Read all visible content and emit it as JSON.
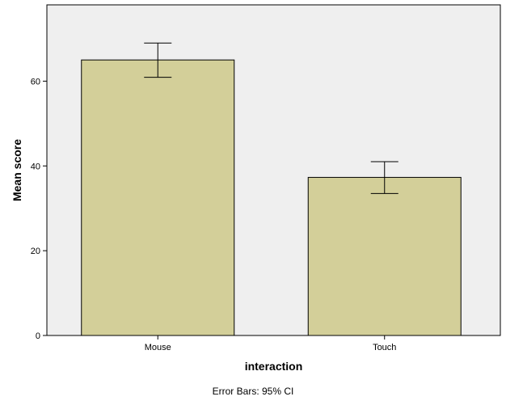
{
  "chart_data": {
    "type": "bar",
    "categories": [
      "Mouse",
      "Touch"
    ],
    "values": [
      65,
      37.3
    ],
    "error_bars": {
      "lower": [
        60.9,
        33.5
      ],
      "upper": [
        69.0,
        41.0
      ]
    },
    "xlabel": "interaction",
    "ylabel": "Mean score",
    "yticks": [
      0,
      20,
      40,
      60
    ],
    "ylim": [
      0,
      78
    ],
    "footnote": "Error Bars: 95% CI",
    "grid": false,
    "colors": {
      "bar_fill": "#d3cf99",
      "bar_stroke": "#000000",
      "plot_background": "#efefef"
    }
  }
}
